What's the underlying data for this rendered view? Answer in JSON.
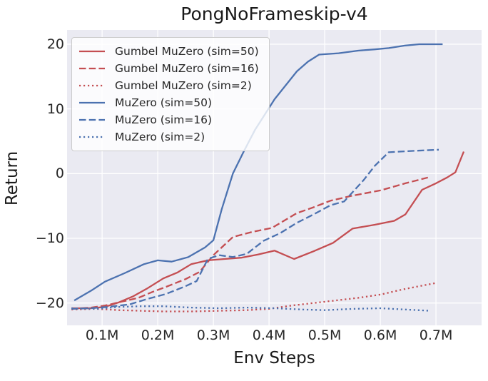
{
  "colors": {
    "red": "#c44e52",
    "blue": "#4c72b0",
    "plot_background": "#eaeaf2",
    "gridline": "#ffffff",
    "text": "#262626",
    "legend_border": "#cccccc"
  },
  "chart_data": {
    "type": "line",
    "title": "PongNoFrameskip-v4",
    "xlabel": "Env Steps",
    "ylabel": "Return",
    "xlim": [
      0.037,
      0.782
    ],
    "ylim": [
      -23.45,
      22.2
    ],
    "grid": true,
    "legend_position": "upper left",
    "x_ticks": [
      {
        "value": 0.1,
        "label": "0.1M"
      },
      {
        "value": 0.2,
        "label": "0.2M"
      },
      {
        "value": 0.3,
        "label": "0.3M"
      },
      {
        "value": 0.4,
        "label": "0.4M"
      },
      {
        "value": 0.5,
        "label": "0.5M"
      },
      {
        "value": 0.6,
        "label": "0.6M"
      },
      {
        "value": 0.7,
        "label": "0.7M"
      }
    ],
    "y_ticks": [
      {
        "value": 20,
        "label": "20"
      },
      {
        "value": 10,
        "label": "10"
      },
      {
        "value": 0,
        "label": "0"
      },
      {
        "value": -10,
        "label": "−10"
      },
      {
        "value": -20,
        "label": "−20"
      }
    ],
    "series": [
      {
        "name": "Gumbel MuZero (sim=50)",
        "color": "#c44e52",
        "style": "solid",
        "points": [
          [
            0.045,
            -20.8
          ],
          [
            0.08,
            -20.8
          ],
          [
            0.105,
            -20.6
          ],
          [
            0.13,
            -19.9
          ],
          [
            0.155,
            -19.0
          ],
          [
            0.18,
            -17.8
          ],
          [
            0.21,
            -16.2
          ],
          [
            0.235,
            -15.3
          ],
          [
            0.26,
            -14.0
          ],
          [
            0.29,
            -13.4
          ],
          [
            0.32,
            -13.2
          ],
          [
            0.35,
            -13.0
          ],
          [
            0.38,
            -12.5
          ],
          [
            0.41,
            -11.9
          ],
          [
            0.445,
            -13.2
          ],
          [
            0.48,
            -12.0
          ],
          [
            0.515,
            -10.7
          ],
          [
            0.55,
            -8.5
          ],
          [
            0.59,
            -7.9
          ],
          [
            0.625,
            -7.3
          ],
          [
            0.645,
            -6.3
          ],
          [
            0.675,
            -2.5
          ],
          [
            0.7,
            -1.5
          ],
          [
            0.72,
            -0.6
          ],
          [
            0.735,
            0.2
          ],
          [
            0.75,
            3.4
          ]
        ]
      },
      {
        "name": "Gumbel MuZero (sim=16)",
        "color": "#c44e52",
        "style": "dashed",
        "points": [
          [
            0.045,
            -20.9
          ],
          [
            0.08,
            -20.7
          ],
          [
            0.105,
            -20.4
          ],
          [
            0.135,
            -19.8
          ],
          [
            0.165,
            -19.2
          ],
          [
            0.19,
            -18.3
          ],
          [
            0.215,
            -17.5
          ],
          [
            0.25,
            -16.3
          ],
          [
            0.275,
            -15.2
          ],
          [
            0.3,
            -12.6
          ],
          [
            0.335,
            -9.8
          ],
          [
            0.37,
            -9.0
          ],
          [
            0.405,
            -8.4
          ],
          [
            0.45,
            -6.1
          ],
          [
            0.48,
            -5.2
          ],
          [
            0.51,
            -4.2
          ],
          [
            0.55,
            -3.4
          ],
          [
            0.6,
            -2.6
          ],
          [
            0.645,
            -1.5
          ],
          [
            0.69,
            -0.5
          ]
        ]
      },
      {
        "name": "Gumbel MuZero (sim=2)",
        "color": "#c44e52",
        "style": "dotted",
        "points": [
          [
            0.045,
            -21.0
          ],
          [
            0.09,
            -20.9
          ],
          [
            0.13,
            -21.1
          ],
          [
            0.17,
            -21.2
          ],
          [
            0.21,
            -21.3
          ],
          [
            0.26,
            -21.3
          ],
          [
            0.31,
            -21.2
          ],
          [
            0.36,
            -21.1
          ],
          [
            0.4,
            -20.9
          ],
          [
            0.44,
            -20.4
          ],
          [
            0.48,
            -20.0
          ],
          [
            0.52,
            -19.6
          ],
          [
            0.56,
            -19.2
          ],
          [
            0.6,
            -18.7
          ],
          [
            0.64,
            -17.9
          ],
          [
            0.67,
            -17.4
          ],
          [
            0.7,
            -16.9
          ]
        ]
      },
      {
        "name": "MuZero (sim=50)",
        "color": "#4c72b0",
        "style": "solid",
        "points": [
          [
            0.05,
            -19.6
          ],
          [
            0.08,
            -18.1
          ],
          [
            0.105,
            -16.7
          ],
          [
            0.14,
            -15.4
          ],
          [
            0.175,
            -14.0
          ],
          [
            0.2,
            -13.4
          ],
          [
            0.225,
            -13.6
          ],
          [
            0.255,
            -12.9
          ],
          [
            0.285,
            -11.4
          ],
          [
            0.3,
            -10.3
          ],
          [
            0.315,
            -5.5
          ],
          [
            0.335,
            0.0
          ],
          [
            0.355,
            3.5
          ],
          [
            0.375,
            6.8
          ],
          [
            0.41,
            11.5
          ],
          [
            0.45,
            15.8
          ],
          [
            0.47,
            17.3
          ],
          [
            0.49,
            18.4
          ],
          [
            0.525,
            18.6
          ],
          [
            0.56,
            19.0
          ],
          [
            0.59,
            19.2
          ],
          [
            0.615,
            19.4
          ],
          [
            0.645,
            19.8
          ],
          [
            0.67,
            20.0
          ],
          [
            0.712,
            20.0
          ]
        ]
      },
      {
        "name": "MuZero (sim=16)",
        "color": "#4c72b0",
        "style": "dashed",
        "points": [
          [
            0.045,
            -20.9
          ],
          [
            0.08,
            -20.8
          ],
          [
            0.11,
            -20.6
          ],
          [
            0.15,
            -20.2
          ],
          [
            0.18,
            -19.4
          ],
          [
            0.215,
            -18.6
          ],
          [
            0.25,
            -17.4
          ],
          [
            0.27,
            -16.6
          ],
          [
            0.29,
            -13.2
          ],
          [
            0.31,
            -12.6
          ],
          [
            0.335,
            -12.9
          ],
          [
            0.36,
            -12.4
          ],
          [
            0.39,
            -10.4
          ],
          [
            0.42,
            -9.2
          ],
          [
            0.45,
            -7.6
          ],
          [
            0.48,
            -6.3
          ],
          [
            0.51,
            -4.9
          ],
          [
            0.535,
            -4.3
          ],
          [
            0.57,
            -1.0
          ],
          [
            0.59,
            1.2
          ],
          [
            0.615,
            3.3
          ],
          [
            0.655,
            3.5
          ],
          [
            0.705,
            3.7
          ]
        ]
      },
      {
        "name": "MuZero (sim=2)",
        "color": "#4c72b0",
        "style": "dotted",
        "points": [
          [
            0.045,
            -20.8
          ],
          [
            0.09,
            -20.9
          ],
          [
            0.13,
            -20.6
          ],
          [
            0.17,
            -20.5
          ],
          [
            0.21,
            -20.5
          ],
          [
            0.26,
            -20.7
          ],
          [
            0.31,
            -20.8
          ],
          [
            0.36,
            -20.7
          ],
          [
            0.41,
            -20.8
          ],
          [
            0.46,
            -21.0
          ],
          [
            0.5,
            -21.1
          ],
          [
            0.55,
            -20.9
          ],
          [
            0.6,
            -20.8
          ],
          [
            0.645,
            -21.0
          ],
          [
            0.69,
            -21.2
          ]
        ]
      }
    ]
  }
}
